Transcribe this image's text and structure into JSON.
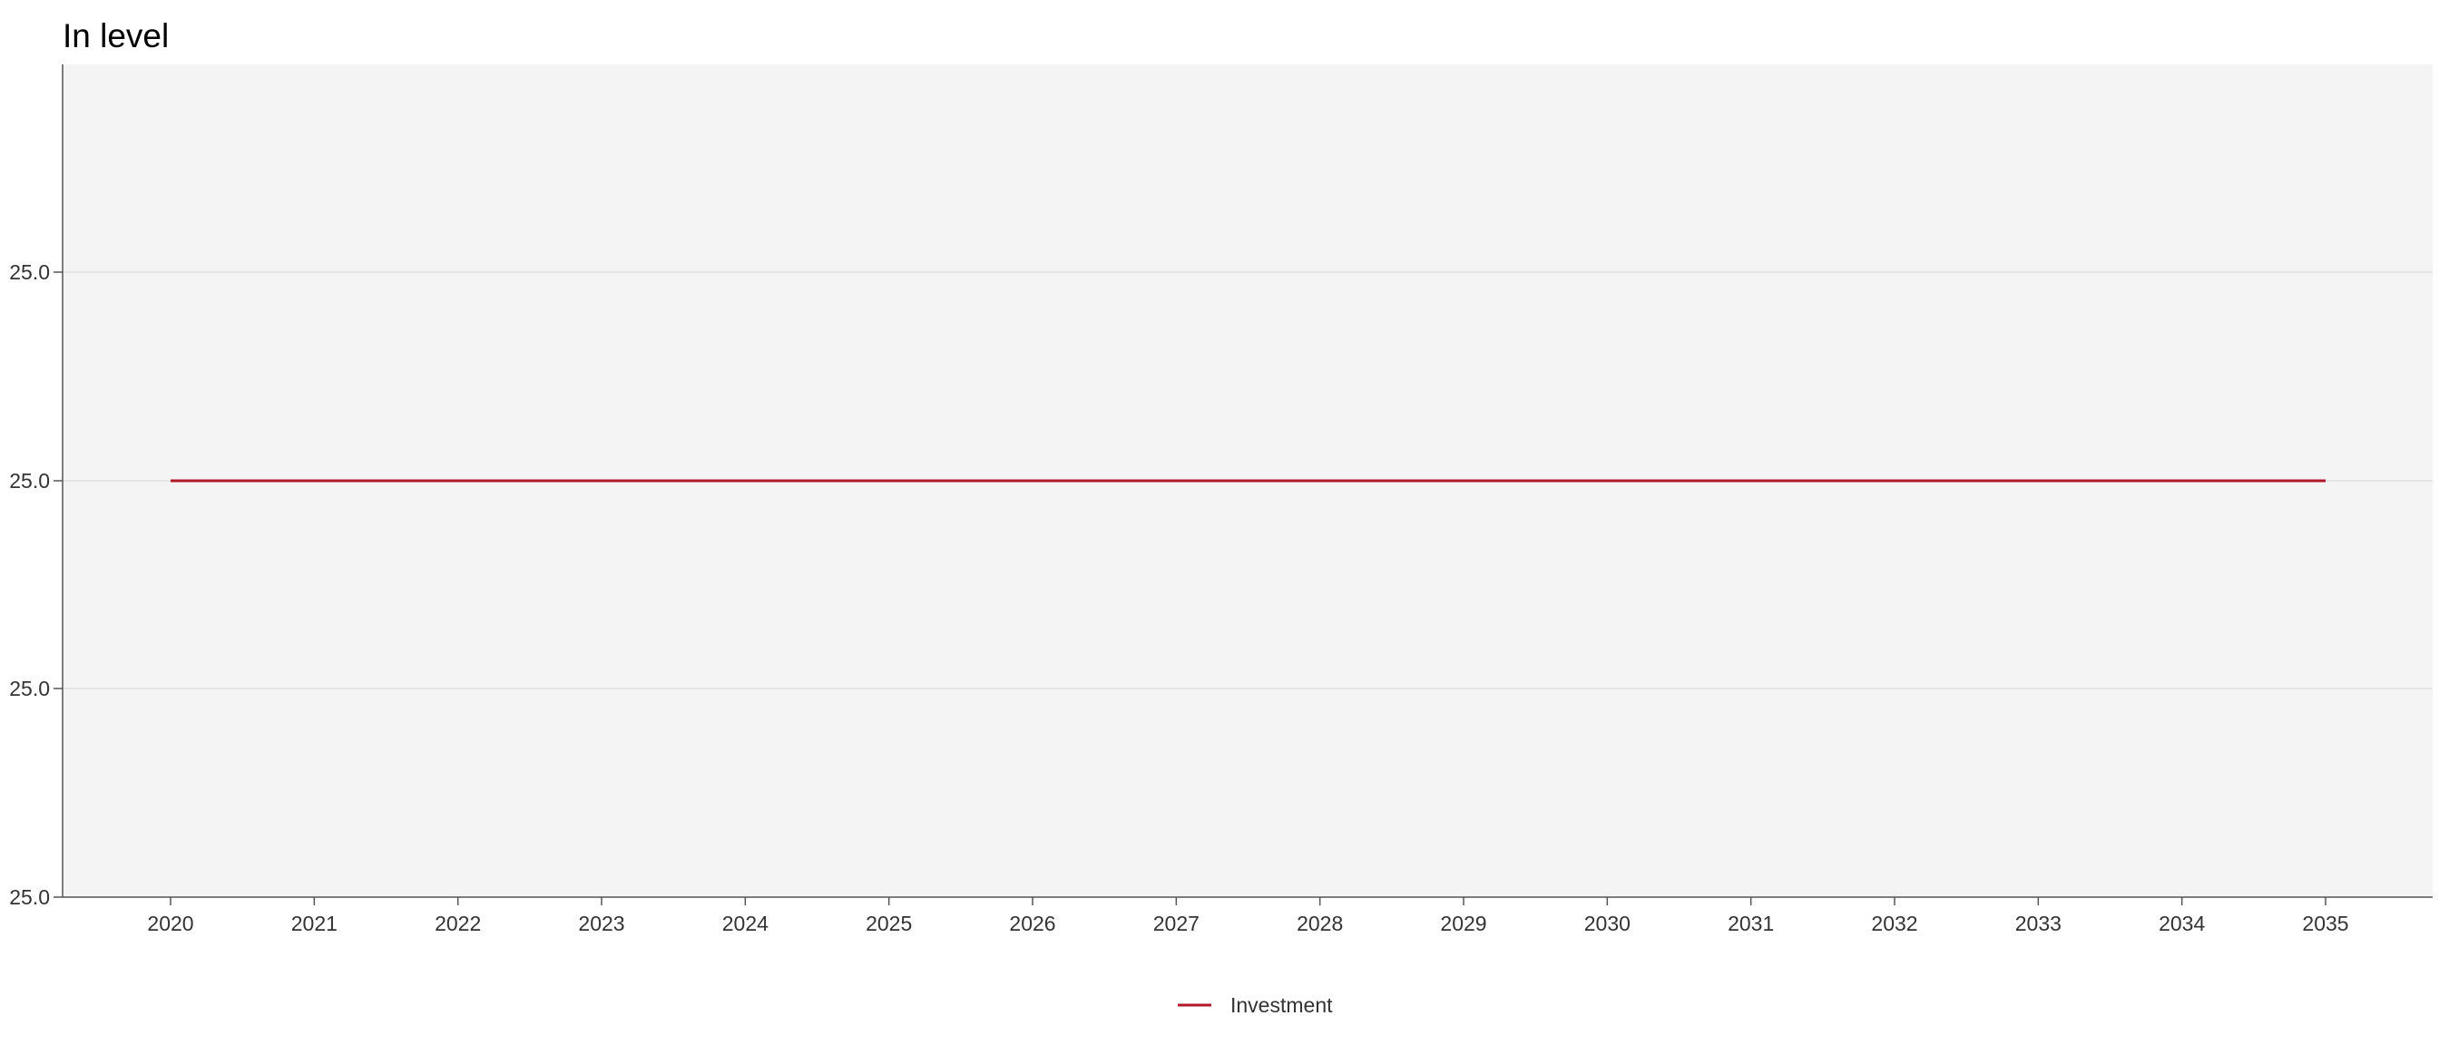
{
  "chart_data": {
    "type": "line",
    "title": "In level",
    "xlabel": "",
    "ylabel": "",
    "x": [
      "2020",
      "2021",
      "2022",
      "2023",
      "2024",
      "2025",
      "2026",
      "2027",
      "2028",
      "2029",
      "2030",
      "2031",
      "2032",
      "2033",
      "2034",
      "2035"
    ],
    "y_tick_labels": [
      "25.0",
      "25.0",
      "25.0",
      "25.0"
    ],
    "series": [
      {
        "name": "Investment",
        "color": "#b2182b",
        "values": [
          25.0,
          25.0,
          25.0,
          25.0,
          25.0,
          25.0,
          25.0,
          25.0,
          25.0,
          25.0,
          25.0,
          25.0,
          25.0,
          25.0,
          25.0,
          25.0
        ]
      }
    ],
    "grid": true,
    "legend_position": "bottom-center",
    "plot_background": "#f4f4f4"
  }
}
